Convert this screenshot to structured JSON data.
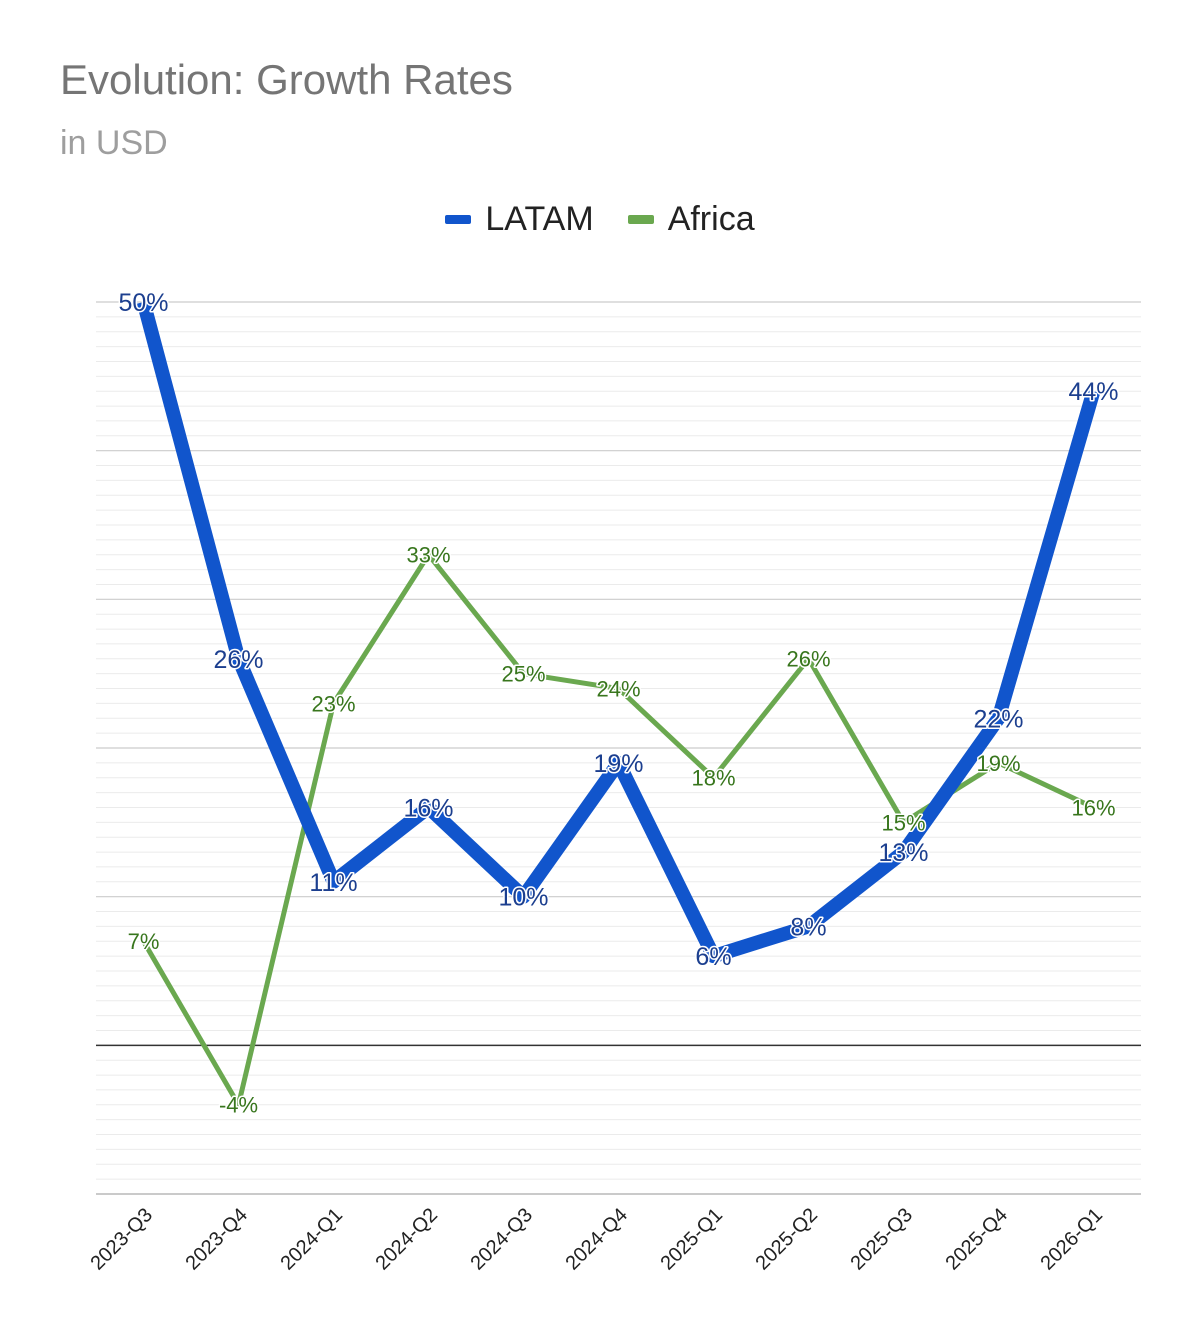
{
  "chart_data": {
    "type": "line",
    "title": "Evolution: Growth Rates",
    "subtitle": "in USD",
    "xlabel": "",
    "ylabel": "",
    "categories": [
      "2023-Q3",
      "2023-Q4",
      "2024-Q1",
      "2024-Q2",
      "2024-Q3",
      "2024-Q4",
      "2025-Q1",
      "2025-Q2",
      "2025-Q3",
      "2025-Q4",
      "2026-Q1"
    ],
    "series": [
      {
        "name": "LATAM",
        "color": "#1155cc",
        "values": [
          50,
          26,
          11,
          16,
          10,
          19,
          6,
          8,
          13,
          22,
          44
        ],
        "labels": [
          "50%",
          "26%",
          "11%",
          "16%",
          "10%",
          "19%",
          "6%",
          "8%",
          "13%",
          "22%",
          "44%"
        ]
      },
      {
        "name": "Africa",
        "color": "#6aa84f",
        "values": [
          7,
          -4,
          23,
          33,
          25,
          24,
          18,
          26,
          15,
          19,
          16
        ],
        "labels": [
          "7%",
          "-4%",
          "23%",
          "33%",
          "25%",
          "24%",
          "18%",
          "26%",
          "15%",
          "19%",
          "16%"
        ]
      }
    ],
    "ylim": [
      -10,
      50
    ],
    "legend_position": "top-center",
    "grid": true
  }
}
